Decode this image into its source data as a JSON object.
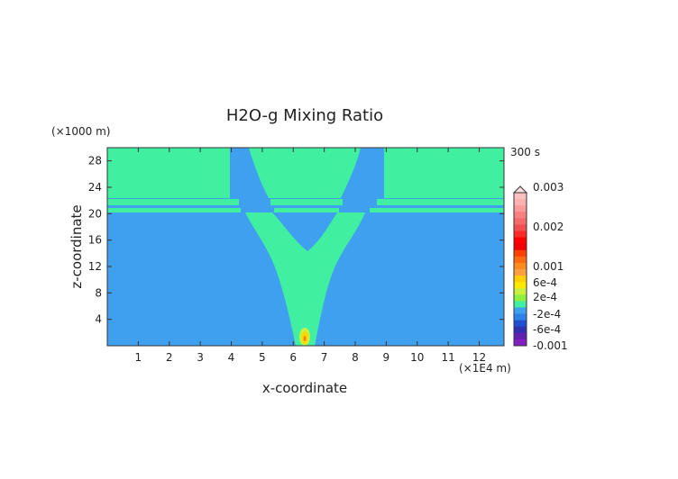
{
  "chart_data": {
    "type": "heatmap",
    "title": "H2O-g Mixing Ratio",
    "xlabel": "x-coordinate",
    "ylabel": "z-coordinate",
    "x_unit": "(×1E4 m)",
    "y_unit": "(×1000 m)",
    "time_label": "300 s",
    "xlim": [
      0,
      12.8
    ],
    "ylim": [
      0,
      30
    ],
    "x_ticks": [
      "1",
      "2",
      "3",
      "4",
      "5",
      "6",
      "7",
      "8",
      "9",
      "10",
      "11",
      "12"
    ],
    "y_ticks": [
      "4",
      "8",
      "12",
      "16",
      "20",
      "24",
      "28"
    ],
    "colorbar": {
      "range": [
        -0.001,
        0.003
      ],
      "ticks": [
        "0.003",
        "0.002",
        "0.001",
        "6e-4",
        "2e-4",
        "-2e-4",
        "-6e-4",
        "-0.001"
      ]
    },
    "background_value_band": "-2e-4 to 2e-4",
    "plume_value_band": "2e-4 to 6e-4",
    "peak": {
      "x": 6.4,
      "z": 1.2,
      "value_band": "0.001"
    }
  },
  "colors": {
    "low_band": "#3fa0f0",
    "mid_band": "#40f0a0",
    "peak_outer": "#c8f040",
    "peak_core": "#ffd800",
    "peak_center": "#ff8000",
    "frame": "#333333"
  }
}
